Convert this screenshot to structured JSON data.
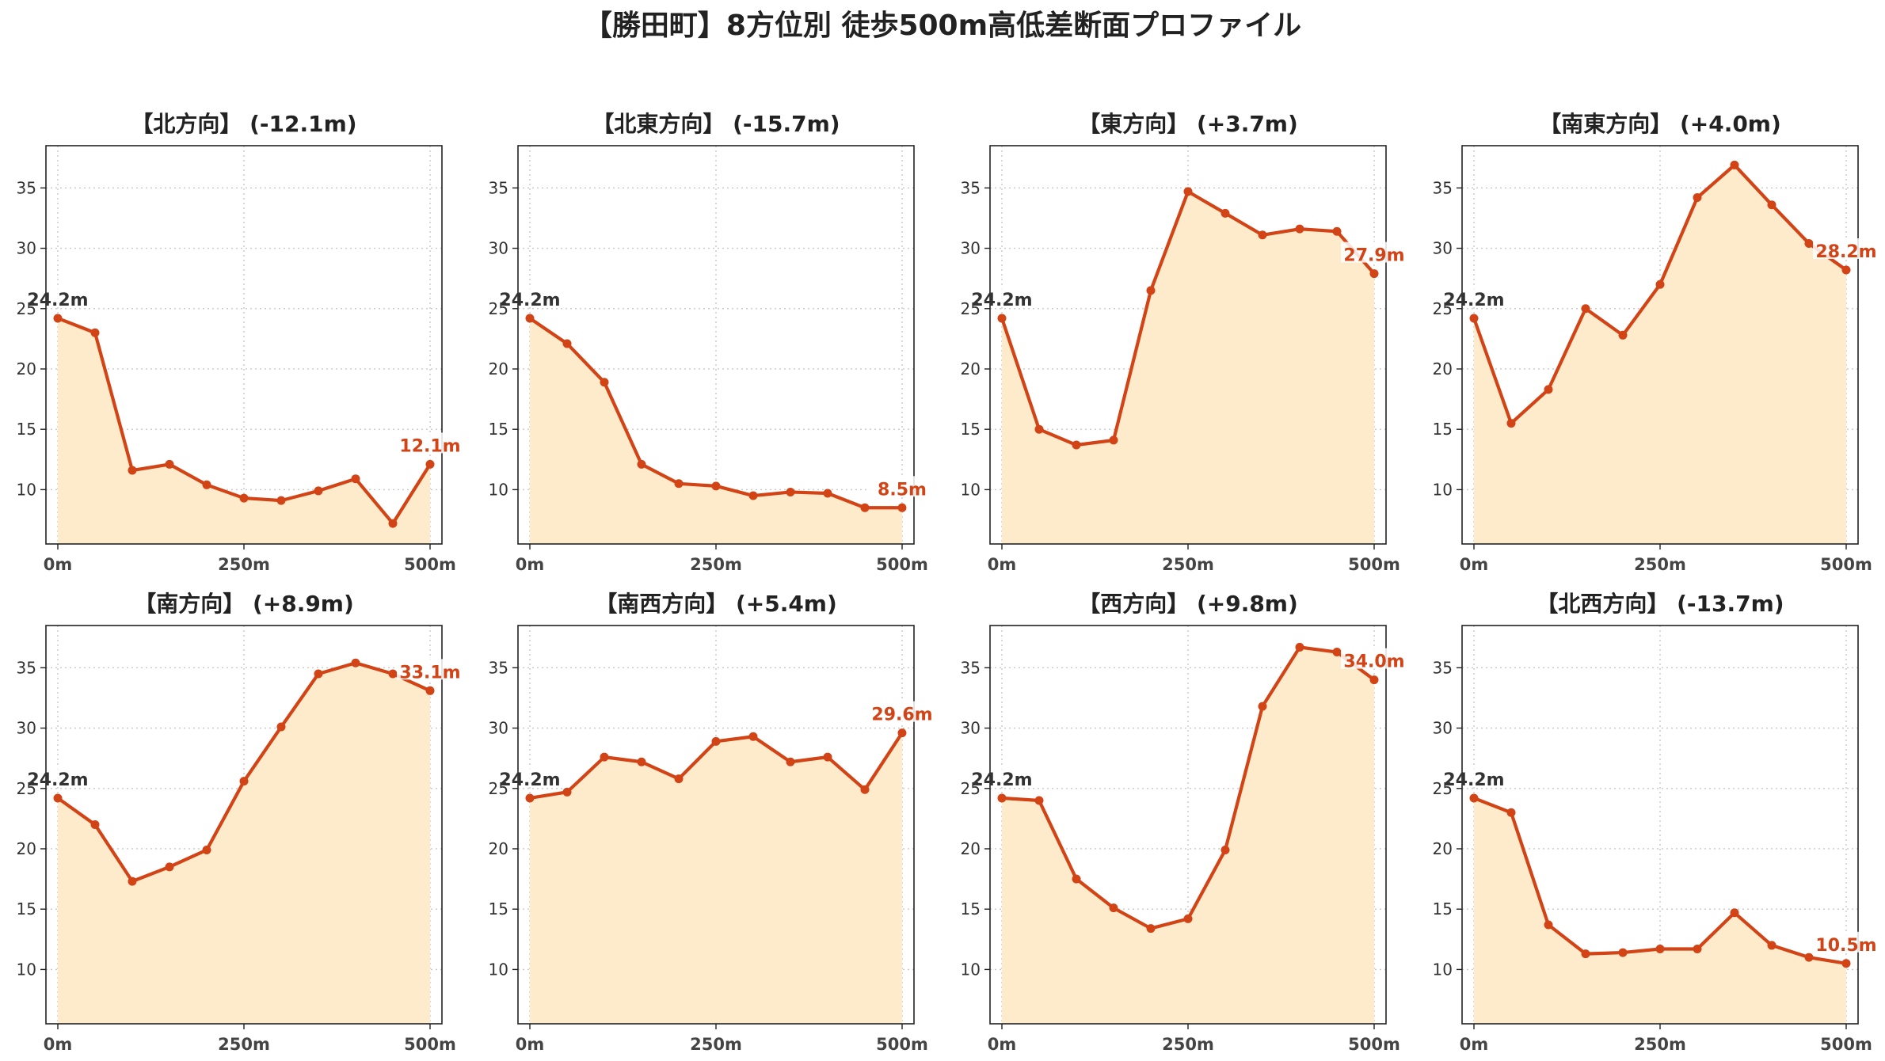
{
  "title": "【勝田町】8方位別 徒歩500m高低差断面プロファイル",
  "colors": {
    "line": "#d24316",
    "fill": "#fdebcc",
    "grid": "#c8c8c8",
    "axis": "#222222"
  },
  "chart_data": [
    {
      "type": "area",
      "title": "【北方向】 (-12.1m)",
      "x": [
        0,
        50,
        100,
        150,
        200,
        250,
        300,
        350,
        400,
        450,
        500
      ],
      "y": [
        24.2,
        23.0,
        11.6,
        12.1,
        10.4,
        9.3,
        9.1,
        9.9,
        10.9,
        7.2,
        12.1
      ],
      "start_label": "24.2m",
      "end_label": "12.1m",
      "ylim": [
        5.5,
        38.5
      ],
      "yticks": [
        "10",
        "15",
        "20",
        "25",
        "30",
        "35"
      ],
      "xticks": [
        "0m",
        "250m",
        "500m"
      ],
      "grid": true
    },
    {
      "type": "area",
      "title": "【北東方向】 (-15.7m)",
      "x": [
        0,
        50,
        100,
        150,
        200,
        250,
        300,
        350,
        400,
        450,
        500
      ],
      "y": [
        24.2,
        22.1,
        18.9,
        12.1,
        10.5,
        10.3,
        9.5,
        9.8,
        9.7,
        8.5,
        8.5
      ],
      "start_label": "24.2m",
      "end_label": "8.5m",
      "ylim": [
        5.5,
        38.5
      ],
      "yticks": [
        "10",
        "15",
        "20",
        "25",
        "30",
        "35"
      ],
      "xticks": [
        "0m",
        "250m",
        "500m"
      ],
      "grid": true
    },
    {
      "type": "area",
      "title": "【東方向】 (+3.7m)",
      "x": [
        0,
        50,
        100,
        150,
        200,
        250,
        300,
        350,
        400,
        450,
        500
      ],
      "y": [
        24.2,
        15.0,
        13.7,
        14.1,
        26.5,
        34.7,
        32.9,
        31.1,
        31.6,
        31.4,
        27.9
      ],
      "start_label": "24.2m",
      "end_label": "27.9m",
      "ylim": [
        5.5,
        38.5
      ],
      "yticks": [
        "10",
        "15",
        "20",
        "25",
        "30",
        "35"
      ],
      "xticks": [
        "0m",
        "250m",
        "500m"
      ],
      "grid": true
    },
    {
      "type": "area",
      "title": "【南東方向】 (+4.0m)",
      "x": [
        0,
        50,
        100,
        150,
        200,
        250,
        300,
        350,
        400,
        450,
        500
      ],
      "y": [
        24.2,
        15.5,
        18.3,
        25.0,
        22.8,
        27.0,
        34.2,
        36.9,
        33.6,
        30.4,
        28.2
      ],
      "start_label": "24.2m",
      "end_label": "28.2m",
      "ylim": [
        5.5,
        38.5
      ],
      "yticks": [
        "10",
        "15",
        "20",
        "25",
        "30",
        "35"
      ],
      "xticks": [
        "0m",
        "250m",
        "500m"
      ],
      "grid": true
    },
    {
      "type": "area",
      "title": "【南方向】 (+8.9m)",
      "x": [
        0,
        50,
        100,
        150,
        200,
        250,
        300,
        350,
        400,
        450,
        500
      ],
      "y": [
        24.2,
        22.0,
        17.3,
        18.5,
        19.9,
        25.6,
        30.1,
        34.5,
        35.4,
        34.5,
        33.1
      ],
      "start_label": "24.2m",
      "end_label": "33.1m",
      "ylim": [
        5.5,
        38.5
      ],
      "yticks": [
        "10",
        "15",
        "20",
        "25",
        "30",
        "35"
      ],
      "xticks": [
        "0m",
        "250m",
        "500m"
      ],
      "grid": true
    },
    {
      "type": "area",
      "title": "【南西方向】 (+5.4m)",
      "x": [
        0,
        50,
        100,
        150,
        200,
        250,
        300,
        350,
        400,
        450,
        500
      ],
      "y": [
        24.2,
        24.7,
        27.6,
        27.2,
        25.8,
        28.9,
        29.3,
        27.2,
        27.6,
        24.9,
        29.6
      ],
      "start_label": "24.2m",
      "end_label": "29.6m",
      "ylim": [
        5.5,
        38.5
      ],
      "yticks": [
        "10",
        "15",
        "20",
        "25",
        "30",
        "35"
      ],
      "xticks": [
        "0m",
        "250m",
        "500m"
      ],
      "grid": true
    },
    {
      "type": "area",
      "title": "【西方向】 (+9.8m)",
      "x": [
        0,
        50,
        100,
        150,
        200,
        250,
        300,
        350,
        400,
        450,
        500
      ],
      "y": [
        24.2,
        24.0,
        17.5,
        15.1,
        13.4,
        14.2,
        19.9,
        31.8,
        36.7,
        36.3,
        34.0
      ],
      "start_label": "24.2m",
      "end_label": "34.0m",
      "ylim": [
        5.5,
        38.5
      ],
      "yticks": [
        "10",
        "15",
        "20",
        "25",
        "30",
        "35"
      ],
      "xticks": [
        "0m",
        "250m",
        "500m"
      ],
      "grid": true
    },
    {
      "type": "area",
      "title": "【北西方向】 (-13.7m)",
      "x": [
        0,
        50,
        100,
        150,
        200,
        250,
        300,
        350,
        400,
        450,
        500
      ],
      "y": [
        24.2,
        23.0,
        13.7,
        11.3,
        11.4,
        11.7,
        11.7,
        14.7,
        12.0,
        11.0,
        10.5
      ],
      "start_label": "24.2m",
      "end_label": "10.5m",
      "ylim": [
        5.5,
        38.5
      ],
      "yticks": [
        "10",
        "15",
        "20",
        "25",
        "30",
        "35"
      ],
      "xticks": [
        "0m",
        "250m",
        "500m"
      ],
      "grid": true
    }
  ]
}
